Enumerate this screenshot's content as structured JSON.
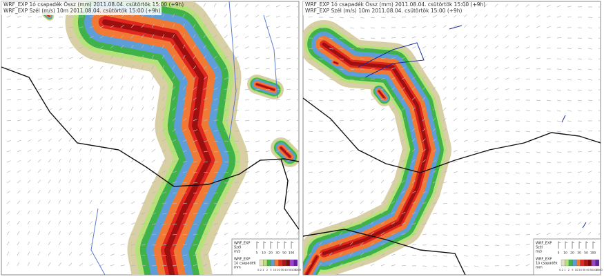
{
  "panels": [
    {
      "header": [
        "WRF_EXP 1ó csapadék Össz (mm) 2011.08.04. csütörtök 15:00 (+9h)",
        "WRF_EXP Szél (m/s) 10m 2011.08.04. csütörtök 15:00 (+9h)"
      ],
      "legend": {
        "wind_title": "WRF_EXP",
        "wind_name": "Szél",
        "wind_unit": "m/s",
        "wind_ticks": [
          "5",
          "10",
          "20",
          "30",
          "50",
          "100"
        ],
        "precip_title": "WRF_EXP",
        "precip_name": "1ó csapadék",
        "precip_unit": "mm",
        "precip_ticks": [
          "0.2",
          "1",
          "2",
          "5",
          "10",
          "20",
          "30",
          "40",
          "50",
          "100",
          "1000"
        ]
      }
    },
    {
      "header": [
        "WRF_EXP 1ó csapadék Össz (mm) 2011.08.04. csütörtök 15:00 (+9h)",
        "WRF_EXP Szél (m/s) 10m 2011.08.04. csütörtök 15:00 (+9h)"
      ],
      "legend": {
        "wind_title": "WRF_EXP",
        "wind_name": "Szél",
        "wind_unit": "m/s",
        "wind_ticks": [
          "5",
          "10",
          "20",
          "30",
          "50",
          "100"
        ],
        "precip_title": "WRF_EXP",
        "precip_name": "1ó csapadék",
        "precip_unit": "mm",
        "precip_ticks": [
          "0.2",
          "1",
          "2",
          "5",
          "10",
          "20",
          "30",
          "40",
          "50",
          "100",
          "1000"
        ]
      }
    }
  ]
}
